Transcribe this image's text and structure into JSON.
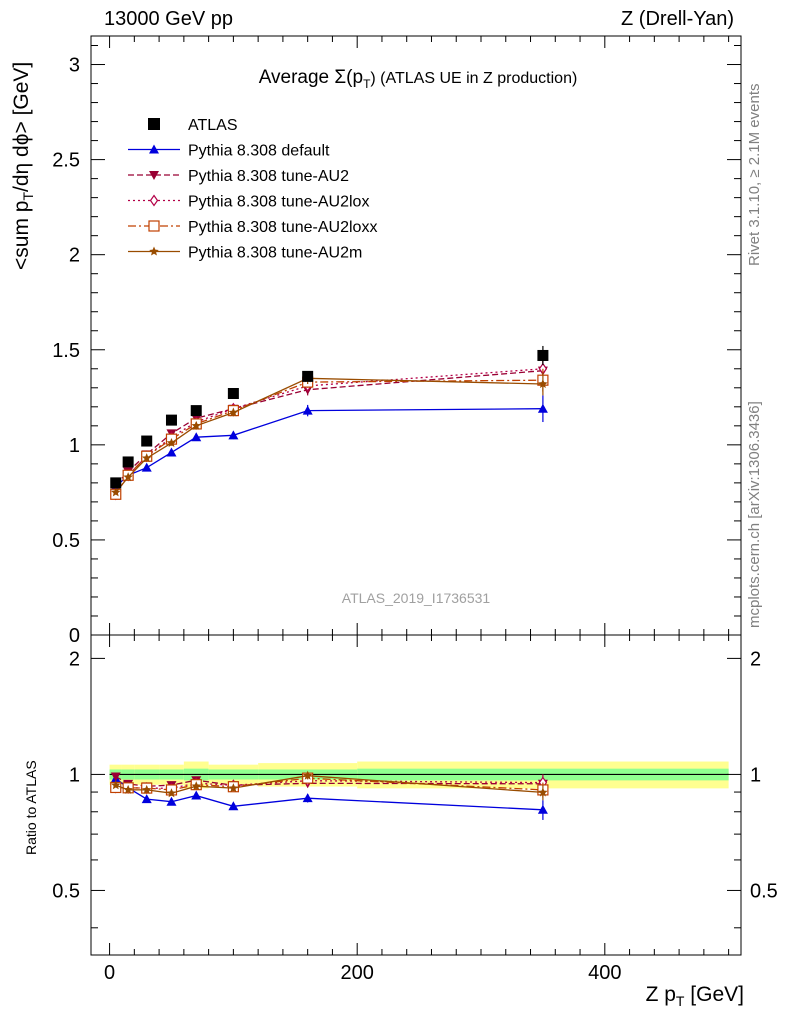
{
  "header": {
    "left": "13000 GeV pp",
    "right": "Z (Drell-Yan)"
  },
  "side_labels": {
    "rivet": "Rivet 3.1.10, ≥ 2.1M events",
    "mcplots": "mcplots.cern.ch [arXiv:1306.3436]"
  },
  "watermark": "ATLAS_2019_I1736531",
  "axis_labels": {
    "y_main": "<sum p_T/dη dϕ> [GeV]",
    "y_ratio": "Ratio to ATLAS",
    "x": "Z p_T [GeV]"
  },
  "colors": {
    "atlas": "#000000",
    "default": "#0000dd",
    "au2": "#990033",
    "au2lox": "#b30047",
    "au2loxx": "#c04000",
    "au2m": "#994c00",
    "band_inner": "#90ff90",
    "band_outer": "#ffff90"
  },
  "chart_data": {
    "type": "line",
    "title": "Average Σ(p_T) (ATLAS UE in Z production)",
    "xlabel": "Z p_T [GeV]",
    "ylabel": "<sum p_T/dη dϕ> [GeV]",
    "xlim": [
      -15,
      510
    ],
    "ylim": [
      0,
      3.15
    ],
    "ratio_ylim": [
      0.34,
      2.3
    ],
    "x_ticks": [
      0,
      200,
      400
    ],
    "y_ticks": [
      0,
      0.5,
      1,
      1.5,
      2,
      2.5,
      3
    ],
    "ratio_ticks": [
      0.5,
      1,
      2
    ],
    "x": [
      5,
      15,
      30,
      50,
      70,
      100,
      160,
      350
    ],
    "reference": {
      "name": "ATLAS",
      "values": [
        0.8,
        0.91,
        1.02,
        1.13,
        1.18,
        1.27,
        1.36,
        1.47
      ],
      "errors": [
        0.01,
        0.01,
        0.01,
        0.01,
        0.015,
        0.015,
        0.02,
        0.05
      ],
      "bin_edges": [
        0,
        10,
        20,
        40,
        60,
        80,
        120,
        200,
        500
      ],
      "band_inner": [
        0.03,
        0.03,
        0.03,
        0.03,
        0.035,
        0.03,
        0.03,
        0.035
      ],
      "band_outer": [
        0.06,
        0.06,
        0.06,
        0.06,
        0.08,
        0.06,
        0.07,
        0.08
      ]
    },
    "series": [
      {
        "name": "Pythia 8.308 default",
        "values": [
          0.78,
          0.84,
          0.88,
          0.96,
          1.04,
          1.05,
          1.18,
          1.19
        ],
        "errors": [
          0.01,
          0.01,
          0.01,
          0.015,
          0.015,
          0.02,
          0.03,
          0.07
        ],
        "marker": "triangle-up",
        "line": "solid",
        "color": "#0000dd"
      },
      {
        "name": "Pythia 8.308 tune-AU2",
        "values": [
          0.79,
          0.86,
          0.95,
          1.06,
          1.14,
          1.19,
          1.29,
          1.39
        ],
        "errors": [
          0.01,
          0.01,
          0.015,
          0.015,
          0.02,
          0.02,
          0.03,
          0.06
        ],
        "marker": "triangle-down",
        "line": "dashed",
        "color": "#990033"
      },
      {
        "name": "Pythia 8.308 tune-AU2lox",
        "values": [
          0.74,
          0.84,
          0.94,
          1.04,
          1.12,
          1.19,
          1.31,
          1.4
        ],
        "errors": [
          0.01,
          0.01,
          0.015,
          0.015,
          0.02,
          0.02,
          0.03,
          0.07
        ],
        "marker": "diamond-open",
        "line": "dotted",
        "color": "#b30047"
      },
      {
        "name": "Pythia 8.308 tune-AU2loxx",
        "values": [
          0.74,
          0.84,
          0.94,
          1.03,
          1.11,
          1.18,
          1.33,
          1.34
        ],
        "errors": [
          0.01,
          0.01,
          0.015,
          0.015,
          0.02,
          0.02,
          0.03,
          0.06
        ],
        "marker": "square-open",
        "line": "dashdot",
        "color": "#c04000"
      },
      {
        "name": "Pythia 8.308 tune-AU2m",
        "values": [
          0.75,
          0.83,
          0.93,
          1.01,
          1.1,
          1.17,
          1.35,
          1.32
        ],
        "errors": [
          0.01,
          0.01,
          0.015,
          0.015,
          0.02,
          0.02,
          0.03,
          0.06
        ],
        "marker": "star",
        "line": "solid",
        "color": "#994c00"
      }
    ]
  }
}
